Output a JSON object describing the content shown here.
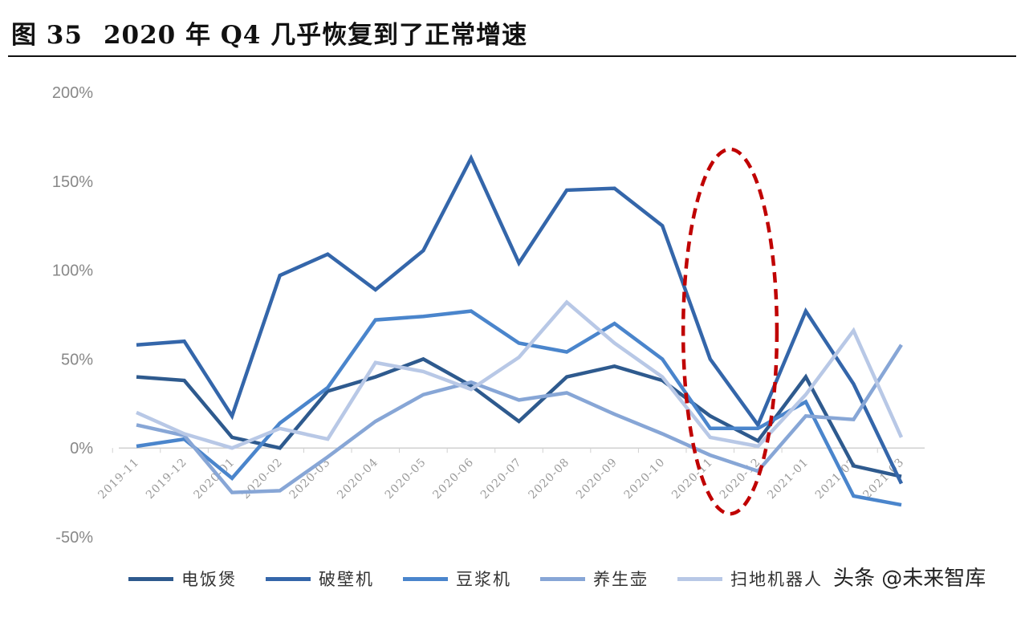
{
  "figure": {
    "label": "图 35",
    "title": "2020 年 Q4 几乎恢复到了正常增速"
  },
  "watermark": "头条 @未来智库",
  "chart_data": {
    "type": "line",
    "x": [
      "2019-11",
      "2019-12",
      "2020-01",
      "2020-02",
      "2020-03",
      "2020-04",
      "2020-05",
      "2020-06",
      "2020-07",
      "2020-08",
      "2020-09",
      "2020-10",
      "2020-11",
      "2020-12",
      "2021-01",
      "2021-02",
      "2021-03"
    ],
    "ylim": [
      -0.5,
      2.0
    ],
    "yticks": [
      -0.5,
      0,
      0.5,
      1.0,
      1.5,
      2.0
    ],
    "ytick_labels": [
      "-50%",
      "0%",
      "50%",
      "100%",
      "150%",
      "200%"
    ],
    "grid": false,
    "legend_position": "bottom",
    "highlight": {
      "shape": "dashed-ellipse",
      "color": "#c00000",
      "covers": [
        "2020-11",
        "2020-12"
      ]
    },
    "series": [
      {
        "name": "电饭煲",
        "color": "#2e5a8e",
        "values": [
          0.4,
          0.38,
          0.06,
          0.0,
          0.32,
          0.4,
          0.5,
          0.35,
          0.15,
          0.4,
          0.46,
          0.38,
          0.18,
          0.04,
          0.4,
          -0.1,
          -0.16
        ]
      },
      {
        "name": "破壁机",
        "color": "#3466aa",
        "values": [
          0.58,
          0.6,
          0.18,
          0.97,
          1.09,
          0.89,
          1.11,
          1.63,
          1.04,
          1.45,
          1.46,
          1.25,
          0.5,
          0.13,
          0.77,
          0.36,
          -0.2
        ]
      },
      {
        "name": "豆浆机",
        "color": "#4a85cc",
        "values": [
          0.01,
          0.05,
          -0.17,
          0.14,
          0.34,
          0.72,
          0.74,
          0.77,
          0.59,
          0.54,
          0.7,
          0.5,
          0.11,
          0.11,
          0.26,
          -0.27,
          -0.32
        ]
      },
      {
        "name": "养生壶",
        "color": "#87a6d6",
        "values": [
          0.13,
          0.07,
          -0.25,
          -0.24,
          -0.05,
          0.15,
          0.3,
          0.37,
          0.27,
          0.31,
          0.19,
          0.08,
          -0.04,
          -0.13,
          0.18,
          0.16,
          0.58
        ]
      },
      {
        "name": "扫地机器人",
        "color": "#b8c8e6",
        "values": [
          0.2,
          0.08,
          0.0,
          0.11,
          0.05,
          0.48,
          0.43,
          0.33,
          0.51,
          0.82,
          0.59,
          0.4,
          0.06,
          0.01,
          0.3,
          0.66,
          0.06
        ]
      }
    ]
  }
}
